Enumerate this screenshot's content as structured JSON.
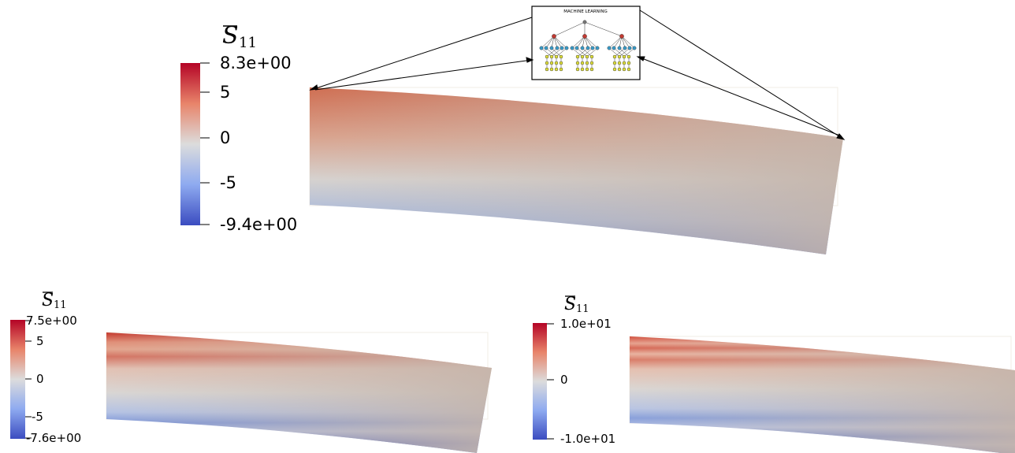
{
  "main": {
    "colorbar": {
      "symbol": "S",
      "subscript": "11",
      "max_label": "8.3e+00",
      "tick_5": "5",
      "tick_0": "0",
      "tick_m5": "-5",
      "min_label": "-9.4e+00"
    },
    "ml_box_title": "MACHINE LEARNING"
  },
  "bottom_left": {
    "colorbar": {
      "symbol": "S",
      "subscript": "11",
      "max_label": "7.5e+00",
      "tick_5": "5",
      "tick_0": "0",
      "tick_m5": "-5",
      "min_label": "-7.6e+00"
    }
  },
  "bottom_right": {
    "colorbar": {
      "symbol": "S",
      "subscript": "11",
      "max_label": "1.0e+01",
      "tick_0": "0",
      "min_label": "-1.0e+01"
    }
  },
  "colors": {
    "high": "#b40426",
    "mid": "#dddddd",
    "low": "#3b4cc0",
    "accent_red": "#c23a32",
    "node_blue": "#3a9bc8",
    "node_yellow": "#e0e03a"
  }
}
